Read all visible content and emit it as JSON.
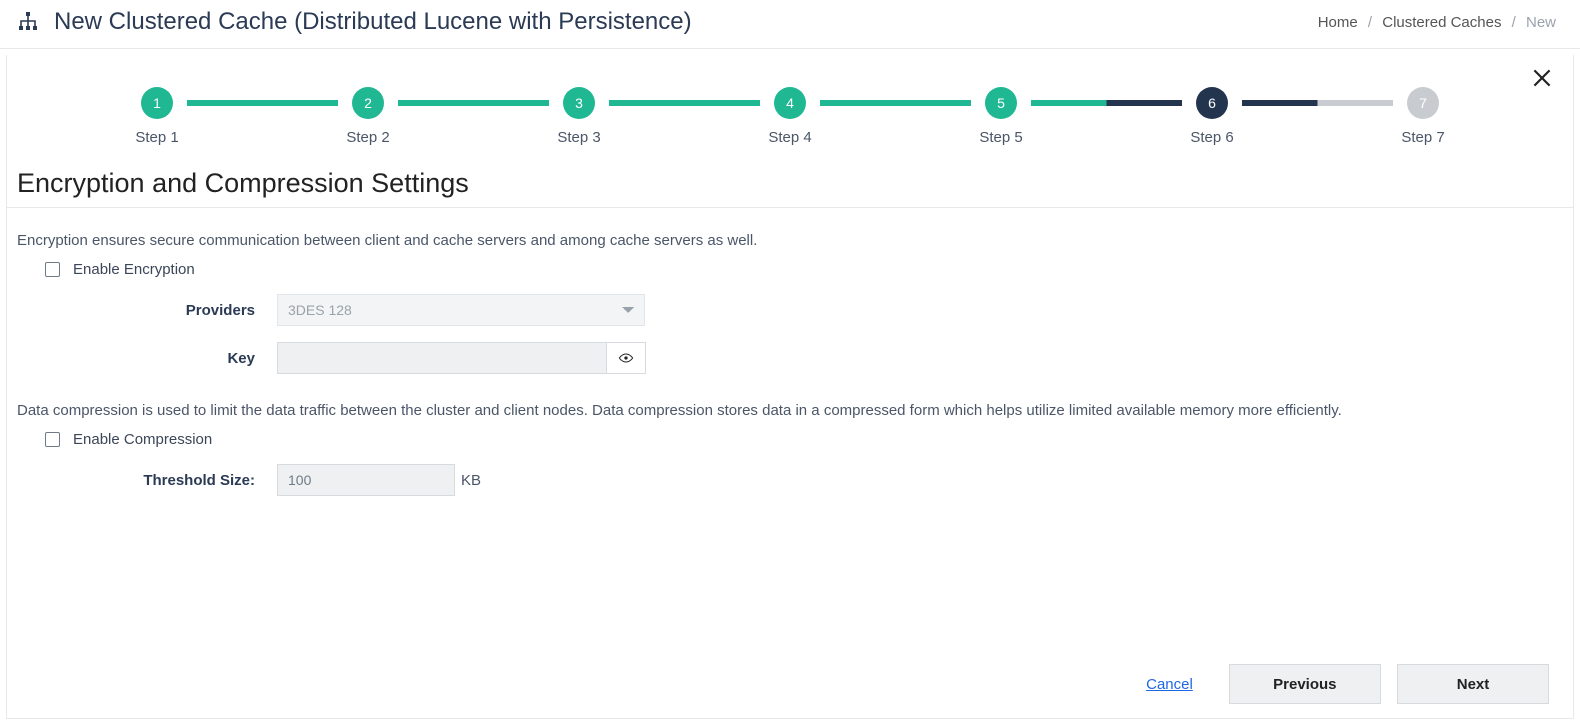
{
  "colors": {
    "accent_done": "#1fb893",
    "accent_current": "#23344f",
    "accent_future": "#c8ccd1",
    "text_primary": "#2b3a55",
    "text_muted": "#6f7a88",
    "border": "#e6e8ea",
    "input_bg": "#eef0f2",
    "link": "#1f66e5"
  },
  "header": {
    "title": "New Clustered Cache (Distributed Lucene with Persistence)"
  },
  "breadcrumb": {
    "items": [
      "Home",
      "Clustered Caches",
      "New"
    ],
    "current_index": 2,
    "separator": "/"
  },
  "stepper": {
    "current_step": 6,
    "total_steps": 7,
    "steps": [
      {
        "num": "1",
        "label": "Step 1"
      },
      {
        "num": "2",
        "label": "Step 2"
      },
      {
        "num": "3",
        "label": "Step 3"
      },
      {
        "num": "4",
        "label": "Step 4"
      },
      {
        "num": "5",
        "label": "Step 5"
      },
      {
        "num": "6",
        "label": "Step 6"
      },
      {
        "num": "7",
        "label": "Step 7"
      }
    ]
  },
  "section": {
    "title": "Encryption and Compression Settings"
  },
  "encryption": {
    "description": "Encryption ensures secure communication between client and cache servers and among cache servers as well.",
    "enable_label": "Enable Encryption",
    "enabled": false,
    "providers_label": "Providers",
    "providers_value": "3DES 128",
    "key_label": "Key",
    "key_value": ""
  },
  "compression": {
    "description": "Data compression is used to limit the data traffic between the cluster and client nodes. Data compression stores data in a compressed form which helps utilize limited available memory more efficiently.",
    "enable_label": "Enable Compression",
    "enabled": false,
    "threshold_label": "Threshold Size:",
    "threshold_value": "100",
    "threshold_unit": "KB"
  },
  "footer": {
    "cancel": "Cancel",
    "previous": "Previous",
    "next": "Next"
  }
}
